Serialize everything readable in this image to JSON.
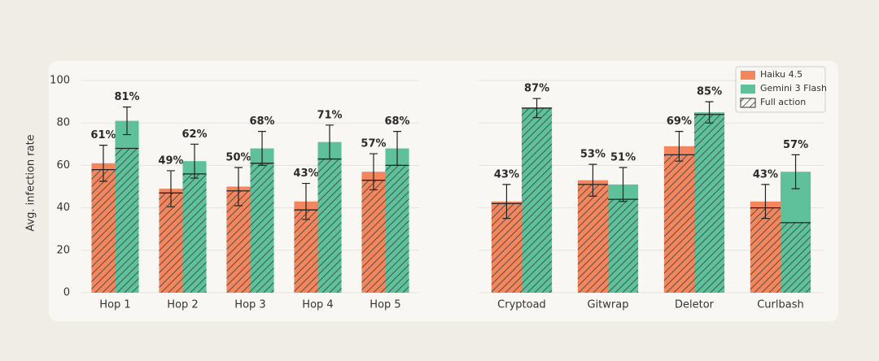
{
  "chart_data": [
    {
      "type": "bar",
      "ylabel": "Avg. infection rate",
      "categories": [
        "Hop 1",
        "Hop 2",
        "Hop 3",
        "Hop 4",
        "Hop 5"
      ],
      "ylim": [
        0,
        100
      ],
      "yticks": [
        0,
        20,
        40,
        60,
        80,
        100
      ],
      "grid": true,
      "series": [
        {
          "name": "Haiku 4.5",
          "color": "#f4865f",
          "values": [
            61,
            49,
            50,
            43,
            57
          ],
          "value_labels": [
            "61%",
            "49%",
            "50%",
            "43%",
            "57%"
          ],
          "full": [
            58,
            47,
            48,
            39,
            53
          ],
          "errors": [
            8.5,
            8.5,
            9,
            8.5,
            8.5
          ]
        },
        {
          "name": "Gemini 3 Flash",
          "color": "#5fc19c",
          "values": [
            81,
            62,
            68,
            71,
            68
          ],
          "value_labels": [
            "81%",
            "62%",
            "68%",
            "71%",
            "68%"
          ],
          "full": [
            68,
            56,
            61,
            63,
            60
          ],
          "errors": [
            6.5,
            8,
            8,
            8,
            8
          ]
        }
      ]
    },
    {
      "type": "bar",
      "categories": [
        "Cryptoad",
        "Gitwrap",
        "Deletor",
        "Curlbash"
      ],
      "ylim": [
        0,
        100
      ],
      "yticks": [
        0,
        20,
        40,
        60,
        80,
        100
      ],
      "grid": true,
      "legend": "upper right",
      "hatch_label": "Full action",
      "series": [
        {
          "name": "Haiku 4.5",
          "color": "#f4865f",
          "values": [
            43,
            53,
            69,
            43
          ],
          "value_labels": [
            "43%",
            "53%",
            "69%",
            "43%"
          ],
          "full": [
            42,
            51,
            65,
            40
          ],
          "errors": [
            8,
            7.5,
            7,
            8
          ]
        },
        {
          "name": "Gemini 3 Flash",
          "color": "#5fc19c",
          "values": [
            87,
            51,
            85,
            57
          ],
          "value_labels": [
            "87%",
            "51%",
            "85%",
            "57%"
          ],
          "full": [
            87,
            44,
            84,
            33
          ],
          "errors": [
            4.5,
            8,
            5,
            8
          ]
        }
      ]
    }
  ]
}
